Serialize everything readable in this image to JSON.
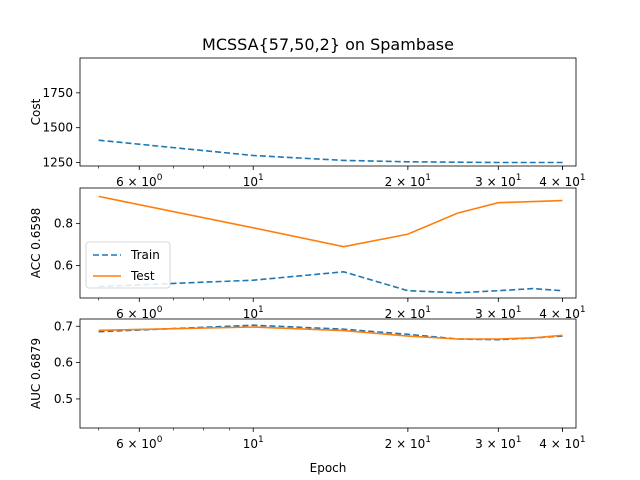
{
  "chart_data": {
    "type": "line",
    "title": "MCSSA{57,50,2} on Spambase",
    "xlabel": "Epoch",
    "x_scale": "log",
    "x": [
      5,
      10,
      15,
      20,
      25,
      30,
      35,
      40
    ],
    "x_tick_labels": [
      {
        "value": 6,
        "mant": "6",
        "exp": "0"
      },
      {
        "value": 10,
        "mant": "",
        "exp": "1"
      },
      {
        "value": 20,
        "mant": "2",
        "exp": "1"
      },
      {
        "value": 30,
        "mant": "3",
        "exp": "1"
      },
      {
        "value": 40,
        "mant": "4",
        "exp": "1"
      }
    ],
    "legend": {
      "location": "center-left",
      "entries": [
        "Train",
        "Test"
      ]
    },
    "colors": {
      "train": "#1f77b4",
      "test": "#ff7f0e"
    },
    "panels": [
      {
        "ylabel": "Cost",
        "ylim": [
          1225,
          2000
        ],
        "yticks": [
          1250,
          1500,
          1750
        ],
        "series": [
          {
            "key": "train",
            "style": "dashed",
            "values": [
              1410,
              1300,
              1265,
              1255,
              1252,
              1250,
              1250,
              1250
            ]
          }
        ]
      },
      {
        "ylabel": "ACC 0.6598",
        "ylim": [
          0.445,
          0.97
        ],
        "yticks": [
          0.6,
          0.8
        ],
        "series": [
          {
            "key": "train",
            "style": "dashed",
            "values": [
              0.5,
              0.53,
              0.57,
              0.48,
              0.47,
              0.48,
              0.49,
              0.48
            ]
          },
          {
            "key": "test",
            "style": "solid",
            "values": [
              0.93,
              0.78,
              0.69,
              0.75,
              0.85,
              0.9,
              0.905,
              0.91
            ]
          }
        ]
      },
      {
        "ylabel": "AUC 0.6879",
        "ylim": [
          0.42,
          0.72
        ],
        "yticks": [
          0.5,
          0.6,
          0.7
        ],
        "series": [
          {
            "key": "train",
            "style": "dashed",
            "values": [
              0.685,
              0.703,
              0.692,
              0.678,
              0.665,
              0.663,
              0.668,
              0.673
            ]
          },
          {
            "key": "test",
            "style": "solid",
            "values": [
              0.689,
              0.698,
              0.688,
              0.673,
              0.665,
              0.665,
              0.668,
              0.675
            ]
          }
        ]
      }
    ]
  }
}
